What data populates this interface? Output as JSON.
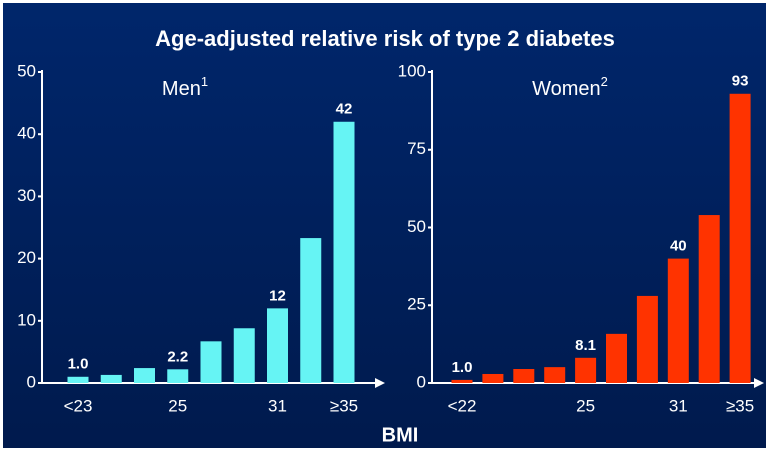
{
  "title": "Age-adjusted relative risk of type 2 diabetes",
  "xlabel": "BMI",
  "chart_data": [
    {
      "type": "bar",
      "title": "Men",
      "title_superscript": "1",
      "categories": [
        "<23",
        null,
        null,
        "25",
        null,
        null,
        "31",
        null,
        "≥35"
      ],
      "values": [
        1.0,
        1.3,
        2.4,
        2.2,
        6.7,
        8.8,
        12,
        23.3,
        42
      ],
      "value_labels": [
        "1.0",
        null,
        null,
        "2.2",
        null,
        null,
        "12",
        null,
        "42"
      ],
      "color": "#66f4f4",
      "ylim": [
        0,
        50
      ],
      "yticks": [
        0,
        10,
        20,
        30,
        40,
        50
      ]
    },
    {
      "type": "bar",
      "title": "Women",
      "title_superscript": "2",
      "categories": [
        "<22",
        null,
        null,
        null,
        "25",
        null,
        null,
        "31",
        null,
        "≥35"
      ],
      "values": [
        1.0,
        2.9,
        4.5,
        5.1,
        8.1,
        15.8,
        28,
        40,
        54,
        93
      ],
      "value_labels": [
        "1.0",
        null,
        null,
        null,
        "8.1",
        null,
        null,
        "40",
        null,
        "93"
      ],
      "color": "#ff3300",
      "ylim": [
        0,
        100
      ],
      "yticks": [
        0,
        25,
        50,
        75,
        100
      ]
    }
  ]
}
